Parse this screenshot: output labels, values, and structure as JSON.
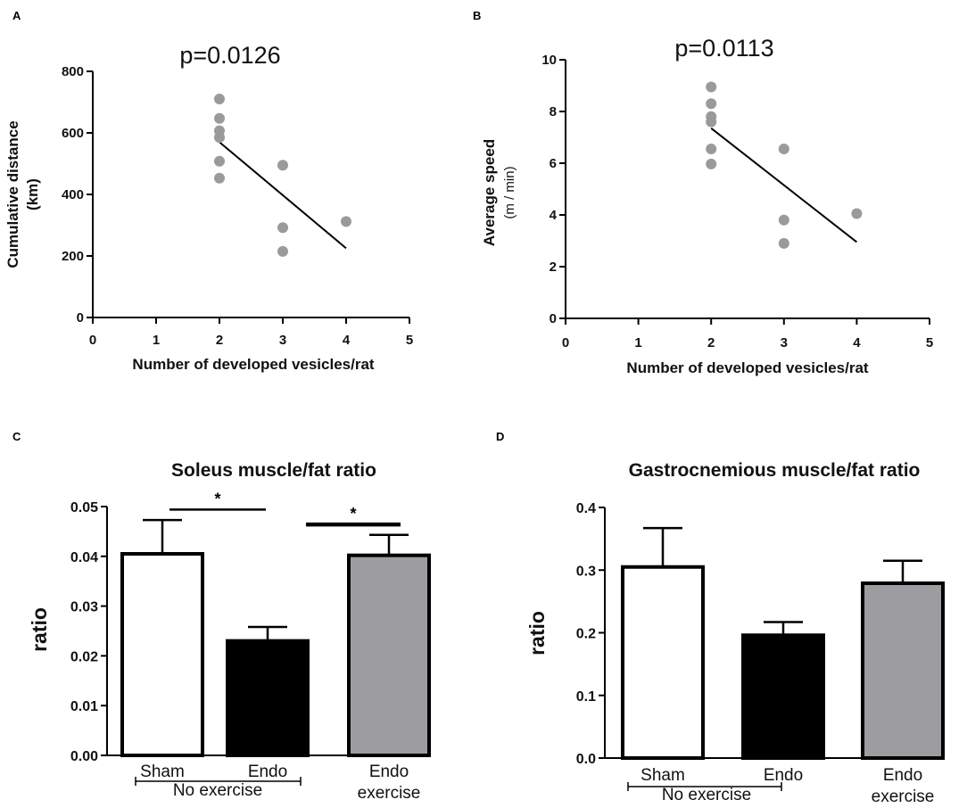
{
  "chart_data": [
    {
      "panel": "A",
      "type": "scatter",
      "annotation": "p=0.0126",
      "xlabel": "Number of developed vesicles/rat",
      "ylabel": [
        "Cumulative distance",
        "(km)"
      ],
      "xlim": [
        0,
        5
      ],
      "ylim": [
        0,
        800
      ],
      "xticks": [
        "0",
        "1",
        "2",
        "3",
        "4",
        "5"
      ],
      "yticks": [
        "0",
        "200",
        "400",
        "600",
        "800"
      ],
      "points": [
        {
          "x": 2,
          "y": 710
        },
        {
          "x": 2,
          "y": 647
        },
        {
          "x": 2,
          "y": 607
        },
        {
          "x": 2,
          "y": 585
        },
        {
          "x": 2,
          "y": 508
        },
        {
          "x": 2,
          "y": 453
        },
        {
          "x": 3,
          "y": 495
        },
        {
          "x": 3,
          "y": 292
        },
        {
          "x": 3,
          "y": 215
        },
        {
          "x": 4,
          "y": 312
        }
      ],
      "fit_line": {
        "x": [
          2,
          4
        ],
        "y": [
          570,
          225
        ]
      },
      "point_color": "#9a9a9a"
    },
    {
      "panel": "B",
      "type": "scatter",
      "annotation": "p=0.0113",
      "xlabel": "Number of developed vesicles/rat",
      "ylabel": [
        "Average speed",
        "(m / min)"
      ],
      "xlim": [
        0,
        5
      ],
      "ylim": [
        0,
        10
      ],
      "xticks": [
        "0",
        "1",
        "2",
        "3",
        "4",
        "5"
      ],
      "yticks": [
        "0",
        "2",
        "4",
        "6",
        "8",
        "10"
      ],
      "points": [
        {
          "x": 2,
          "y": 8.95
        },
        {
          "x": 2,
          "y": 8.3
        },
        {
          "x": 2,
          "y": 7.8
        },
        {
          "x": 2,
          "y": 7.6
        },
        {
          "x": 2,
          "y": 6.55
        },
        {
          "x": 2,
          "y": 5.97
        },
        {
          "x": 3,
          "y": 6.55
        },
        {
          "x": 3,
          "y": 3.8
        },
        {
          "x": 3,
          "y": 2.9
        },
        {
          "x": 4,
          "y": 4.05
        }
      ],
      "fit_line": {
        "x": [
          2,
          4
        ],
        "y": [
          7.35,
          2.95
        ]
      },
      "point_color": "#9a9a9a"
    },
    {
      "panel": "C",
      "type": "bar",
      "title": "Soleus muscle/fat ratio",
      "ylabel": "ratio",
      "ylim": [
        0,
        0.05
      ],
      "yticks": [
        "0.00",
        "0.01",
        "0.02",
        "0.03",
        "0.04",
        "0.05"
      ],
      "categories": [
        "Sham",
        "Endo",
        "Endo\nexercise"
      ],
      "values": [
        0.0405,
        0.023,
        0.0402
      ],
      "errors": [
        0.0068,
        0.0028,
        0.0041
      ],
      "fills": [
        "#ffffff",
        "#000000",
        "#9d9ca1"
      ],
      "group_label": "No exercise",
      "significance": [
        {
          "from": 0,
          "to": 1,
          "level": 0.0494,
          "label": "*"
        },
        {
          "from": 1,
          "to": 2,
          "level": 0.0464,
          "label": "*"
        }
      ]
    },
    {
      "panel": "D",
      "type": "bar",
      "title": "Gastrocnemious muscle/fat ratio",
      "ylabel": "ratio",
      "ylim": [
        0,
        0.4
      ],
      "yticks": [
        "0.0",
        "0.1",
        "0.2",
        "0.3",
        "0.4"
      ],
      "categories": [
        "Sham",
        "Endo",
        "Endo\nexercise"
      ],
      "values": [
        0.305,
        0.196,
        0.279
      ],
      "errors": [
        0.062,
        0.021,
        0.036
      ],
      "fills": [
        "#ffffff",
        "#000000",
        "#9d9ca1"
      ],
      "group_label": "No exercise",
      "significance": []
    }
  ]
}
